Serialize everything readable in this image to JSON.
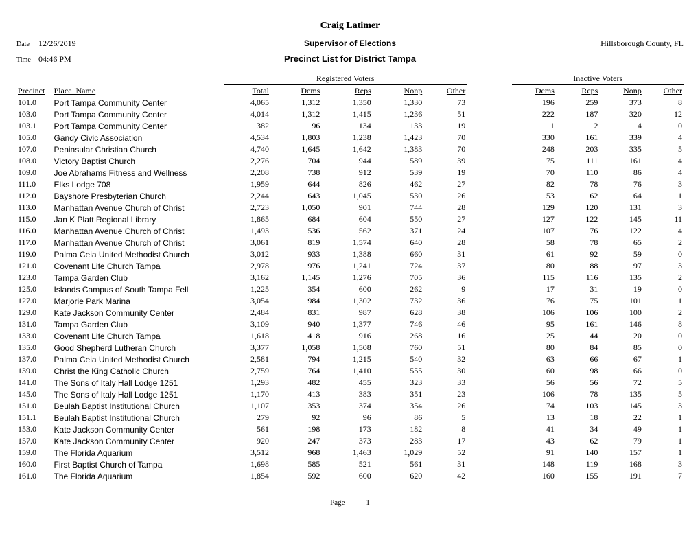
{
  "header": {
    "official_name": "Craig Latimer",
    "official_title": "Supervisor of Elections",
    "report_title": "Precinct List for District Tampa",
    "county": "Hillsborough County, FL",
    "date_label": "Date",
    "date_value": "12/26/2019",
    "time_label": "Time",
    "time_value": "04:46 PM"
  },
  "group_headers": {
    "registered": "Registered Voters",
    "inactive": "Inactive Voters"
  },
  "columns": {
    "precinct": "Precinct",
    "place": "Place_Name",
    "total": "Total",
    "dems": "Dems",
    "reps": "Reps",
    "nonp": "Nonp",
    "other": "Other"
  },
  "footer": {
    "page_label": "Page",
    "page_number": "1"
  },
  "styles": {
    "body_font": "Times New Roman",
    "place_font": "Arial",
    "title_fontsize_pt": 14,
    "body_fontsize_pt": 12,
    "place_fontsize_pt": 11,
    "text_color": "#000000",
    "background_color": "#ffffff",
    "rule_color": "#000000"
  },
  "rows": [
    {
      "precinct": "101.0",
      "place": "Port Tampa Community Center",
      "total": "4,065",
      "rd": "1,312",
      "rr": "1,350",
      "rn": "1,330",
      "ro": "73",
      "id": "196",
      "ir": "259",
      "in": "373",
      "io": "8"
    },
    {
      "precinct": "103.0",
      "place": "Port Tampa Community Center",
      "total": "4,014",
      "rd": "1,312",
      "rr": "1,415",
      "rn": "1,236",
      "ro": "51",
      "id": "222",
      "ir": "187",
      "in": "320",
      "io": "12"
    },
    {
      "precinct": "103.1",
      "place": "Port Tampa Community Center",
      "total": "382",
      "rd": "96",
      "rr": "134",
      "rn": "133",
      "ro": "19",
      "id": "1",
      "ir": "2",
      "in": "4",
      "io": "0"
    },
    {
      "precinct": "105.0",
      "place": "Gandy Civic Association",
      "total": "4,534",
      "rd": "1,803",
      "rr": "1,238",
      "rn": "1,423",
      "ro": "70",
      "id": "330",
      "ir": "161",
      "in": "339",
      "io": "4"
    },
    {
      "precinct": "107.0",
      "place": "Peninsular Christian Church",
      "total": "4,740",
      "rd": "1,645",
      "rr": "1,642",
      "rn": "1,383",
      "ro": "70",
      "id": "248",
      "ir": "203",
      "in": "335",
      "io": "5"
    },
    {
      "precinct": "108.0",
      "place": "Victory Baptist Church",
      "total": "2,276",
      "rd": "704",
      "rr": "944",
      "rn": "589",
      "ro": "39",
      "id": "75",
      "ir": "111",
      "in": "161",
      "io": "4"
    },
    {
      "precinct": "109.0",
      "place": "Joe Abrahams Fitness and Wellness",
      "total": "2,208",
      "rd": "738",
      "rr": "912",
      "rn": "539",
      "ro": "19",
      "id": "70",
      "ir": "110",
      "in": "86",
      "io": "4"
    },
    {
      "precinct": "111.0",
      "place": "Elks Lodge 708",
      "total": "1,959",
      "rd": "644",
      "rr": "826",
      "rn": "462",
      "ro": "27",
      "id": "82",
      "ir": "78",
      "in": "76",
      "io": "3"
    },
    {
      "precinct": "112.0",
      "place": "Bayshore Presbyterian Church",
      "total": "2,244",
      "rd": "643",
      "rr": "1,045",
      "rn": "530",
      "ro": "26",
      "id": "53",
      "ir": "62",
      "in": "64",
      "io": "1"
    },
    {
      "precinct": "113.0",
      "place": "Manhattan Avenue Church of Christ",
      "total": "2,723",
      "rd": "1,050",
      "rr": "901",
      "rn": "744",
      "ro": "28",
      "id": "129",
      "ir": "120",
      "in": "131",
      "io": "3"
    },
    {
      "precinct": "115.0",
      "place": "Jan K Platt Regional Library",
      "total": "1,865",
      "rd": "684",
      "rr": "604",
      "rn": "550",
      "ro": "27",
      "id": "127",
      "ir": "122",
      "in": "145",
      "io": "11"
    },
    {
      "precinct": "116.0",
      "place": "Manhattan Avenue Church of Christ",
      "total": "1,493",
      "rd": "536",
      "rr": "562",
      "rn": "371",
      "ro": "24",
      "id": "107",
      "ir": "76",
      "in": "122",
      "io": "4"
    },
    {
      "precinct": "117.0",
      "place": "Manhattan Avenue Church of Christ",
      "total": "3,061",
      "rd": "819",
      "rr": "1,574",
      "rn": "640",
      "ro": "28",
      "id": "58",
      "ir": "78",
      "in": "65",
      "io": "2"
    },
    {
      "precinct": "119.0",
      "place": "Palma Ceia United Methodist Church",
      "total": "3,012",
      "rd": "933",
      "rr": "1,388",
      "rn": "660",
      "ro": "31",
      "id": "61",
      "ir": "92",
      "in": "59",
      "io": "0"
    },
    {
      "precinct": "121.0",
      "place": "Covenant Life Church Tampa",
      "total": "2,978",
      "rd": "976",
      "rr": "1,241",
      "rn": "724",
      "ro": "37",
      "id": "80",
      "ir": "88",
      "in": "97",
      "io": "3"
    },
    {
      "precinct": "123.0",
      "place": "Tampa Garden Club",
      "total": "3,162",
      "rd": "1,145",
      "rr": "1,276",
      "rn": "705",
      "ro": "36",
      "id": "115",
      "ir": "116",
      "in": "135",
      "io": "2"
    },
    {
      "precinct": "125.0",
      "place": "Islands Campus of South Tampa Fell",
      "total": "1,225",
      "rd": "354",
      "rr": "600",
      "rn": "262",
      "ro": "9",
      "id": "17",
      "ir": "31",
      "in": "19",
      "io": "0"
    },
    {
      "precinct": "127.0",
      "place": "Marjorie Park Marina",
      "total": "3,054",
      "rd": "984",
      "rr": "1,302",
      "rn": "732",
      "ro": "36",
      "id": "76",
      "ir": "75",
      "in": "101",
      "io": "1"
    },
    {
      "precinct": "129.0",
      "place": "Kate Jackson Community Center",
      "total": "2,484",
      "rd": "831",
      "rr": "987",
      "rn": "628",
      "ro": "38",
      "id": "106",
      "ir": "106",
      "in": "100",
      "io": "2"
    },
    {
      "precinct": "131.0",
      "place": "Tampa Garden Club",
      "total": "3,109",
      "rd": "940",
      "rr": "1,377",
      "rn": "746",
      "ro": "46",
      "id": "95",
      "ir": "161",
      "in": "146",
      "io": "8"
    },
    {
      "precinct": "133.0",
      "place": "Covenant Life Church Tampa",
      "total": "1,618",
      "rd": "418",
      "rr": "916",
      "rn": "268",
      "ro": "16",
      "id": "25",
      "ir": "44",
      "in": "20",
      "io": "0"
    },
    {
      "precinct": "135.0",
      "place": "Good Shepherd Lutheran Church",
      "total": "3,377",
      "rd": "1,058",
      "rr": "1,508",
      "rn": "760",
      "ro": "51",
      "id": "80",
      "ir": "84",
      "in": "85",
      "io": "0"
    },
    {
      "precinct": "137.0",
      "place": "Palma Ceia United Methodist Church",
      "total": "2,581",
      "rd": "794",
      "rr": "1,215",
      "rn": "540",
      "ro": "32",
      "id": "63",
      "ir": "66",
      "in": "67",
      "io": "1"
    },
    {
      "precinct": "139.0",
      "place": "Christ the King Catholic Church",
      "total": "2,759",
      "rd": "764",
      "rr": "1,410",
      "rn": "555",
      "ro": "30",
      "id": "60",
      "ir": "98",
      "in": "66",
      "io": "0"
    },
    {
      "precinct": "141.0",
      "place": "The Sons of Italy Hall Lodge 1251",
      "total": "1,293",
      "rd": "482",
      "rr": "455",
      "rn": "323",
      "ro": "33",
      "id": "56",
      "ir": "56",
      "in": "72",
      "io": "5"
    },
    {
      "precinct": "145.0",
      "place": "The Sons of Italy Hall Lodge 1251",
      "total": "1,170",
      "rd": "413",
      "rr": "383",
      "rn": "351",
      "ro": "23",
      "id": "106",
      "ir": "78",
      "in": "135",
      "io": "5"
    },
    {
      "precinct": "151.0",
      "place": "Beulah Baptist Institutional Church",
      "total": "1,107",
      "rd": "353",
      "rr": "374",
      "rn": "354",
      "ro": "26",
      "id": "74",
      "ir": "103",
      "in": "145",
      "io": "3"
    },
    {
      "precinct": "151.1",
      "place": "Beulah Baptist Institutional Church",
      "total": "279",
      "rd": "92",
      "rr": "96",
      "rn": "86",
      "ro": "5",
      "id": "13",
      "ir": "18",
      "in": "22",
      "io": "1"
    },
    {
      "precinct": "153.0",
      "place": "Kate Jackson Community Center",
      "total": "561",
      "rd": "198",
      "rr": "173",
      "rn": "182",
      "ro": "8",
      "id": "41",
      "ir": "34",
      "in": "49",
      "io": "1"
    },
    {
      "precinct": "157.0",
      "place": "Kate Jackson Community Center",
      "total": "920",
      "rd": "247",
      "rr": "373",
      "rn": "283",
      "ro": "17",
      "id": "43",
      "ir": "62",
      "in": "79",
      "io": "1"
    },
    {
      "precinct": "159.0",
      "place": "The Florida Aquarium",
      "total": "3,512",
      "rd": "968",
      "rr": "1,463",
      "rn": "1,029",
      "ro": "52",
      "id": "91",
      "ir": "140",
      "in": "157",
      "io": "1"
    },
    {
      "precinct": "160.0",
      "place": "First Baptist Church of Tampa",
      "total": "1,698",
      "rd": "585",
      "rr": "521",
      "rn": "561",
      "ro": "31",
      "id": "148",
      "ir": "119",
      "in": "168",
      "io": "3"
    },
    {
      "precinct": "161.0",
      "place": "The Florida Aquarium",
      "total": "1,854",
      "rd": "592",
      "rr": "600",
      "rn": "620",
      "ro": "42",
      "id": "160",
      "ir": "155",
      "in": "191",
      "io": "7"
    }
  ]
}
